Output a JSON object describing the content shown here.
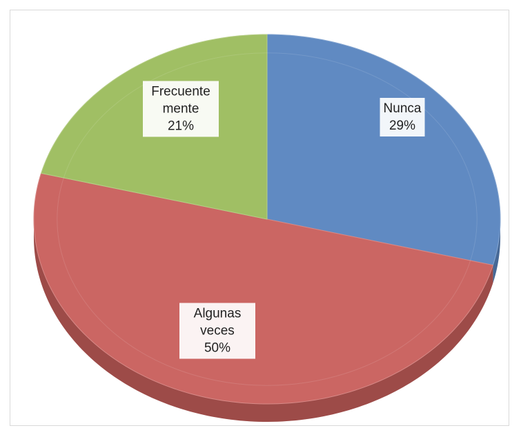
{
  "chart_data": {
    "type": "pie",
    "categories": [
      "Nunca",
      "Algunas veces",
      "Frecuentemente"
    ],
    "values": [
      29,
      50,
      21
    ],
    "value_labels": [
      "29%",
      "50%",
      "21%"
    ],
    "colors": [
      "#5a86c0",
      "#c9605d",
      "#9dbd5e"
    ]
  }
}
